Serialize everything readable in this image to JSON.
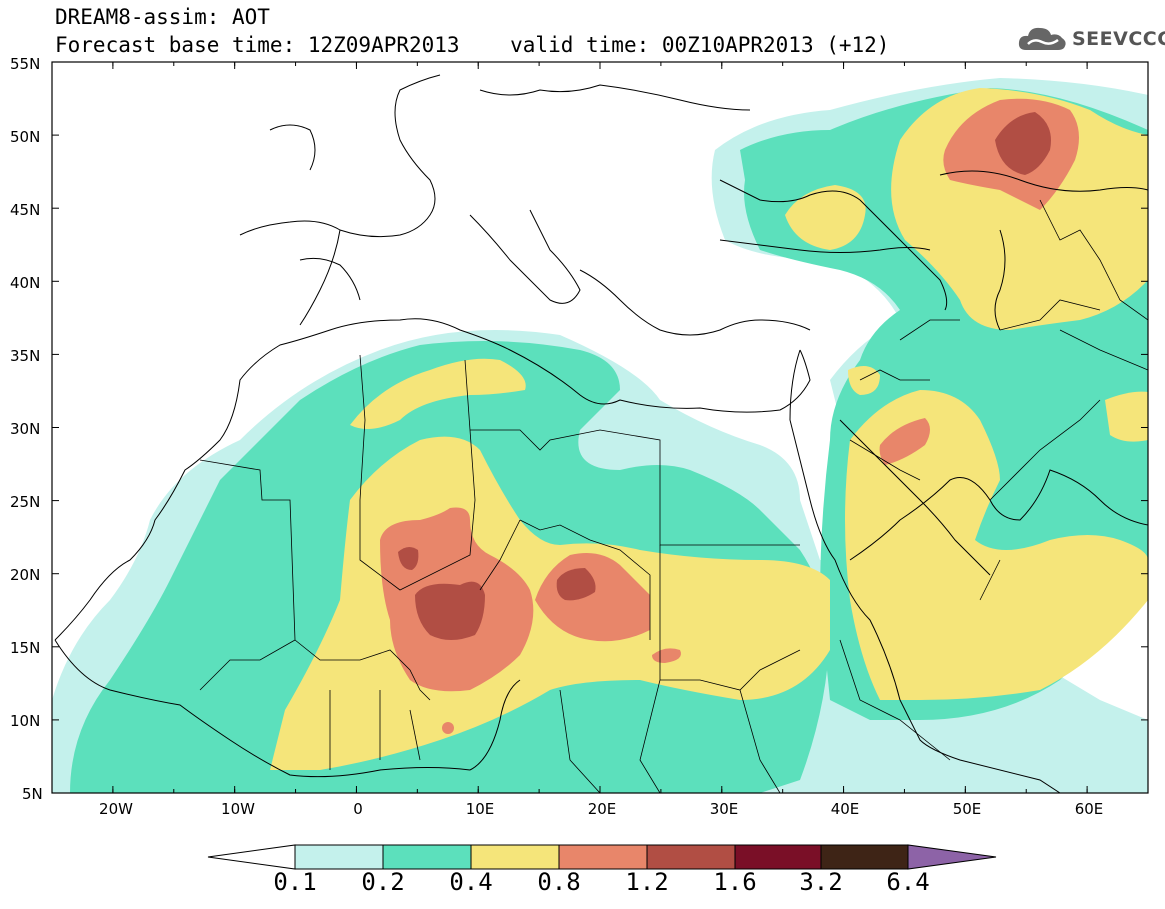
{
  "title": {
    "line1": "DREAM8-assim: AOT",
    "line2": "Forecast base time: 12Z09APR2013    valid time: 00Z10APR2013 (+12)"
  },
  "logo": {
    "text": "SEEVCCC",
    "icon": "cloud-icon",
    "color": "#555555"
  },
  "map": {
    "lon_range": [
      -25,
      65
    ],
    "lat_range": [
      5,
      55
    ],
    "lat_labels": [
      "55N",
      "50N",
      "45N",
      "40N",
      "35N",
      "30N",
      "25N",
      "20N",
      "15N",
      "10N",
      "5N"
    ],
    "lon_labels": [
      "20W",
      "10W",
      "0",
      "10E",
      "20E",
      "30E",
      "40E",
      "50E",
      "60E"
    ]
  },
  "colorbar": {
    "labels": [
      "0.1",
      "0.2",
      "0.4",
      "0.8",
      "1.2",
      "1.6",
      "3.2",
      "6.4"
    ],
    "colors": [
      "#ffffff",
      "#c4f1ec",
      "#5ce0bc",
      "#f5e57a",
      "#e8866a",
      "#b14e44",
      "#7a0f27",
      "#3e2416",
      "#8d63a7"
    ]
  }
}
